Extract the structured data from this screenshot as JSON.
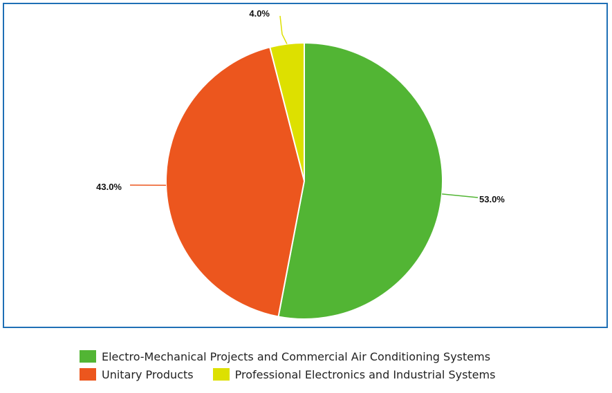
{
  "chart_data": {
    "type": "pie",
    "title": "",
    "start_angle_deg": 0,
    "direction": "clockwise",
    "legend_position": "bottom",
    "slices": [
      {
        "label": "Electro-Mechanical Projects and Commercial Air Conditioning Systems",
        "value": 53.0,
        "value_label": "53.0%",
        "color": "#52b534"
      },
      {
        "label": "Unitary Products",
        "value": 43.0,
        "value_label": "43.0%",
        "color": "#ec561e"
      },
      {
        "label": "Professional Electronics and Industrial Systems",
        "value": 4.0,
        "value_label": "4.0%",
        "color": "#dde000"
      }
    ],
    "frame_color": "#1e6fb5"
  },
  "legend": {
    "rows": [
      [
        0
      ],
      [
        1,
        2
      ]
    ]
  }
}
